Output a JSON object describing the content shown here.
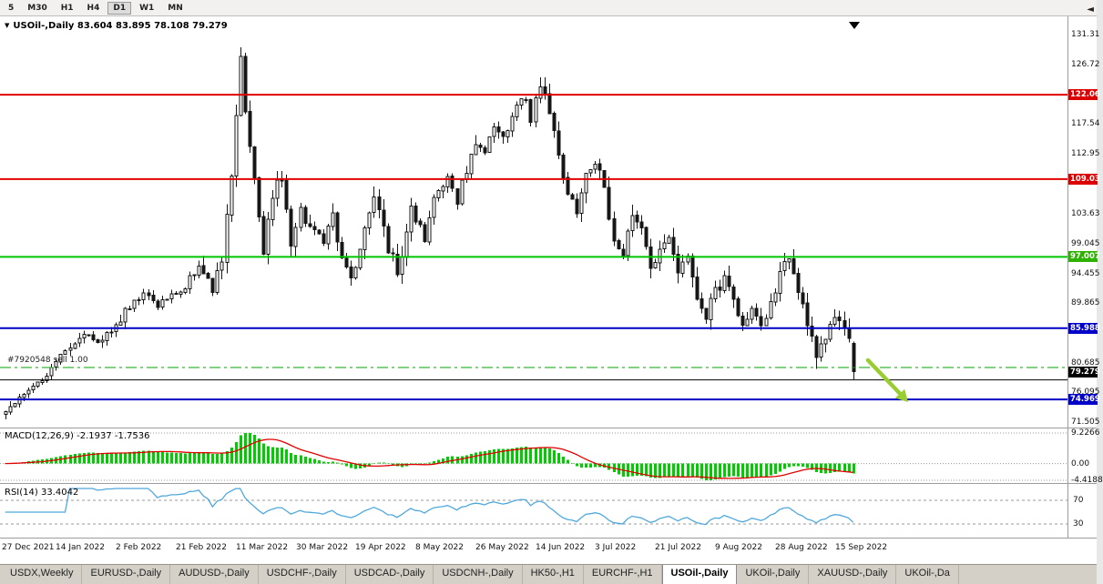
{
  "icons": {
    "collapse": "▼",
    "shift_marker": "▼",
    "tab_scroll": "◄"
  },
  "toolbar": {
    "timeframes": [
      {
        "label": "5",
        "active": false
      },
      {
        "label": "M30",
        "active": false
      },
      {
        "label": "H1",
        "active": false
      },
      {
        "label": "H4",
        "active": false
      },
      {
        "label": "D1",
        "active": true
      },
      {
        "label": "W1",
        "active": false
      },
      {
        "label": "MN",
        "active": false
      }
    ]
  },
  "chart": {
    "title": "USOil-,Daily 83.604 83.895 78.108 79.279"
  },
  "indicators": {
    "macd": {
      "label": "MACD(12,26,9) -2.1937 -1.7536",
      "axis": [
        "9.2266",
        "0.00",
        "-4.4188"
      ]
    },
    "rsi": {
      "label": "RSI(14) 33.4042",
      "axis": [
        "70",
        "30"
      ],
      "levels": [
        70,
        30
      ]
    }
  },
  "position": {
    "label": "#7920548 sell 1.00",
    "price": 79.92
  },
  "price_axis": {
    "ticks": [
      "131.31",
      "126.72",
      "117.54",
      "112.95",
      "103.63",
      "99.045",
      "94.455",
      "89.865",
      "80.685",
      "76.095",
      "71.505"
    ],
    "tick_values": [
      131.31,
      126.72,
      117.54,
      112.95,
      103.63,
      99.045,
      94.455,
      89.865,
      80.685,
      76.095,
      71.505
    ],
    "markers": [
      {
        "text": "122.06",
        "value": 122.06,
        "bg": "#dd0000"
      },
      {
        "text": "109.03",
        "value": 109.03,
        "bg": "#dd0000"
      },
      {
        "text": "97.007",
        "value": 97.007,
        "bg": "#2db200"
      },
      {
        "text": "85.988",
        "value": 85.988,
        "bg": "#0000c8"
      },
      {
        "text": "79.279",
        "value": 79.279,
        "bg": "#000000"
      },
      {
        "text": "74.969",
        "value": 74.969,
        "bg": "#0000c8"
      }
    ]
  },
  "colors": {
    "bull": "#ffffff",
    "bear": "#161616",
    "wick": "#161616",
    "macd_hist": "#00cc00",
    "macd_signal": "#e00000",
    "rsi_line": "#4fa8dc",
    "position_line": "#00a400",
    "separator": "#9c9c9c"
  },
  "chart_data": {
    "type": "candlestick",
    "symbol": "USOil-",
    "timeframe": "Daily",
    "title": "USOil-,Daily",
    "bars": 185,
    "ylim": [
      71.2,
      133.6
    ],
    "last_candle": {
      "open": 83.604,
      "high": 83.895,
      "low": 78.108,
      "close": 79.279
    },
    "price_path": [
      [
        0,
        73.5
      ],
      [
        3,
        75.5
      ],
      [
        6,
        77.5
      ],
      [
        9,
        78.5
      ],
      [
        13,
        82.5
      ],
      [
        17,
        85.5
      ],
      [
        20,
        83.5
      ],
      [
        24,
        86.5
      ],
      [
        26,
        88.5
      ],
      [
        30,
        91.5
      ],
      [
        33,
        89.5
      ],
      [
        36,
        91.0
      ],
      [
        39,
        92.5
      ],
      [
        42,
        96.0
      ],
      [
        45,
        91.5
      ],
      [
        47,
        96.5
      ],
      [
        49,
        110.0
      ],
      [
        51,
        128.5
      ],
      [
        52,
        119.0
      ],
      [
        54,
        108.5
      ],
      [
        56,
        97.5
      ],
      [
        58,
        106.5
      ],
      [
        60,
        109.5
      ],
      [
        62,
        98.0
      ],
      [
        64,
        104.5
      ],
      [
        66,
        101.5
      ],
      [
        69,
        99.5
      ],
      [
        71,
        104.0
      ],
      [
        73,
        96.5
      ],
      [
        75,
        93.5
      ],
      [
        78,
        102.0
      ],
      [
        80,
        107.0
      ],
      [
        83,
        98.5
      ],
      [
        85,
        94.5
      ],
      [
        88,
        104.0
      ],
      [
        91,
        100.0
      ],
      [
        93,
        105.5
      ],
      [
        96,
        109.5
      ],
      [
        98,
        106.0
      ],
      [
        100,
        110.5
      ],
      [
        102,
        114.5
      ],
      [
        104,
        113.0
      ],
      [
        106,
        117.5
      ],
      [
        108,
        115.5
      ],
      [
        110,
        119.5
      ],
      [
        112,
        122.0
      ],
      [
        114,
        118.5
      ],
      [
        116,
        123.5
      ],
      [
        118,
        120.0
      ],
      [
        120,
        113.5
      ],
      [
        122,
        106.5
      ],
      [
        124,
        104.0
      ],
      [
        126,
        110.0
      ],
      [
        128,
        111.5
      ],
      [
        130,
        108.0
      ],
      [
        132,
        99.0
      ],
      [
        134,
        97.0
      ],
      [
        136,
        104.0
      ],
      [
        138,
        102.0
      ],
      [
        140,
        95.5
      ],
      [
        142,
        98.0
      ],
      [
        144,
        100.5
      ],
      [
        146,
        94.5
      ],
      [
        148,
        97.0
      ],
      [
        150,
        90.0
      ],
      [
        152,
        88.0
      ],
      [
        154,
        91.5
      ],
      [
        156,
        93.5
      ],
      [
        158,
        90.0
      ],
      [
        160,
        86.5
      ],
      [
        162,
        88.5
      ],
      [
        164,
        86.0
      ],
      [
        166,
        90.5
      ],
      [
        168,
        94.0
      ],
      [
        170,
        97.0
      ],
      [
        172,
        91.5
      ],
      [
        174,
        86.5
      ],
      [
        176,
        82.0
      ],
      [
        178,
        85.0
      ],
      [
        180,
        88.5
      ],
      [
        182,
        85.5
      ],
      [
        183,
        83.6
      ],
      [
        184,
        79.279
      ]
    ],
    "hlines": [
      {
        "price": 122.06,
        "color": "#e00000",
        "width": 2
      },
      {
        "price": 109.03,
        "color": "#e00000",
        "width": 2
      },
      {
        "price": 97.007,
        "color": "#00c400",
        "width": 2
      },
      {
        "price": 85.988,
        "color": "#0000c8",
        "width": 2
      },
      {
        "price": 78.0,
        "color": "#000000",
        "width": 1
      },
      {
        "price": 74.969,
        "color": "#0000c8",
        "width": 2
      }
    ],
    "arrow": {
      "x1": 953,
      "y1": 396,
      "x2": 997,
      "y2": 442,
      "color": "#9acd32"
    },
    "x_labels": [
      "27 Dec 2021",
      "14 Jan 2022",
      "2 Feb 2022",
      "21 Feb 2022",
      "11 Mar 2022",
      "30 Mar 2022",
      "19 Apr 2022",
      "8 May 2022",
      "26 May 2022",
      "14 Jun 2022",
      "3 Jul 2022",
      "21 Jul 2022",
      "9 Aug 2022",
      "28 Aug 2022",
      "15 Sep 2022"
    ]
  },
  "tabs": {
    "items": [
      {
        "label": "USDX,Weekly",
        "active": false
      },
      {
        "label": "EURUSD-,Daily",
        "active": false
      },
      {
        "label": "AUDUSD-,Daily",
        "active": false
      },
      {
        "label": "USDCHF-,Daily",
        "active": false
      },
      {
        "label": "USDCAD-,Daily",
        "active": false
      },
      {
        "label": "USDCNH-,Daily",
        "active": false
      },
      {
        "label": "HK50-,H1",
        "active": false
      },
      {
        "label": "EURCHF-,H1",
        "active": false
      },
      {
        "label": "USOil-,Daily",
        "active": true
      },
      {
        "label": "UKOil-,Daily",
        "active": false
      },
      {
        "label": "XAUUSD-,Daily",
        "active": false
      },
      {
        "label": "UKOil-,Da",
        "active": false
      }
    ]
  }
}
